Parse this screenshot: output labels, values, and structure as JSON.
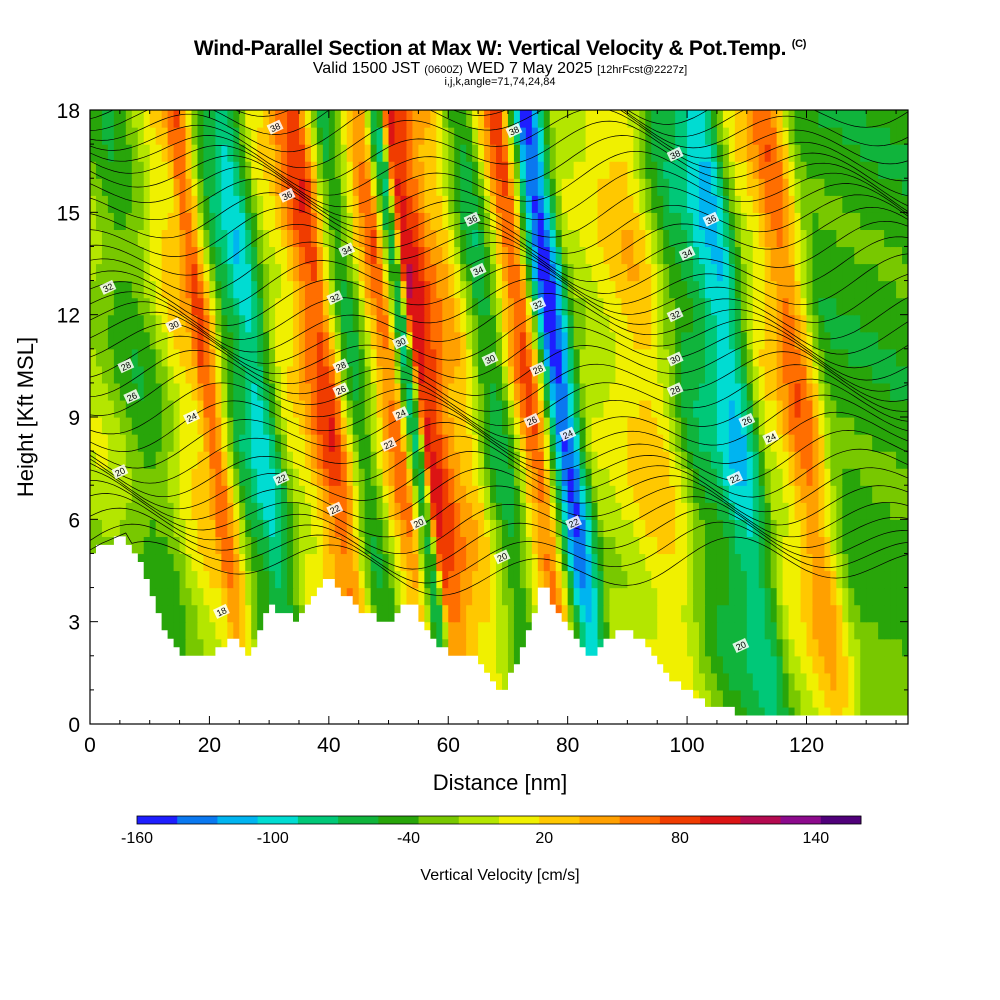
{
  "title": {
    "main": "Wind-Parallel Section at Max W: Vertical Velocity & Pot.Temp.",
    "unit_mark": "(C)",
    "valid_prefix": "Valid 1500 JST",
    "valid_utc": "(0600Z)",
    "valid_date": "WED 7 May 2025",
    "forecast": "[12hrFcst@2227z]",
    "indices": "i,j,k,angle=71,74,24,84"
  },
  "chart_data": {
    "type": "heatmap",
    "xlabel": "Distance [nm]",
    "ylabel": "Height [Kft MSL]",
    "xlim": [
      0,
      137
    ],
    "ylim": [
      0,
      18
    ],
    "x_ticks": [
      "0",
      "20",
      "40",
      "60",
      "80",
      "100",
      "120"
    ],
    "y_ticks": [
      "0",
      "3",
      "6",
      "9",
      "12",
      "15",
      "18"
    ],
    "grid": false,
    "colorbar": {
      "label": "Vertical Velocity [cm/s]",
      "tick_labels": [
        "-160",
        "-100",
        "-40",
        "20",
        "80",
        "140"
      ],
      "tick_values": [
        -160,
        -100,
        -40,
        20,
        80,
        140
      ],
      "min": -160,
      "max": 160,
      "step": 20,
      "colors": [
        "#1e1eff",
        "#0a78f0",
        "#00b4f0",
        "#00dcd2",
        "#00c878",
        "#10b43c",
        "#28a50a",
        "#78c800",
        "#b4e600",
        "#f0f000",
        "#ffc800",
        "#ffa000",
        "#ff6e00",
        "#f03c00",
        "#dc1414",
        "#b40a50",
        "#8c0a8c",
        "#50007a"
      ]
    },
    "vertical_velocity_bands": [
      {
        "x": 3,
        "w": 10
      },
      {
        "x": 11,
        "w": -30
      },
      {
        "x": 20,
        "w": 50
      },
      {
        "x": 22,
        "w": 100
      },
      {
        "x": 27,
        "w": -50
      },
      {
        "x": 30,
        "w": -90
      },
      {
        "x": 36,
        "w": 30
      },
      {
        "x": 42,
        "w": 110
      },
      {
        "x": 47,
        "w": -40
      },
      {
        "x": 53,
        "w": 90
      },
      {
        "x": 56,
        "w": -60
      },
      {
        "x": 58,
        "w": 130
      },
      {
        "x": 64,
        "w": 60
      },
      {
        "x": 70,
        "w": -50
      },
      {
        "x": 76,
        "w": 100
      },
      {
        "x": 81,
        "w": -150
      },
      {
        "x": 86,
        "w": 10
      },
      {
        "x": 96,
        "w": 50
      },
      {
        "x": 104,
        "w": -50
      },
      {
        "x": 110,
        "w": -100
      },
      {
        "x": 116,
        "w": 30
      },
      {
        "x": 121,
        "w": 90
      },
      {
        "x": 127,
        "w": -30
      }
    ],
    "terrain": [
      {
        "x": 0,
        "z": 5.0
      },
      {
        "x": 2,
        "z": 5.2
      },
      {
        "x": 6,
        "z": 5.5
      },
      {
        "x": 9,
        "z": 4.5
      },
      {
        "x": 12,
        "z": 3.0
      },
      {
        "x": 15,
        "z": 2.0
      },
      {
        "x": 20,
        "z": 2.0
      },
      {
        "x": 24,
        "z": 2.5
      },
      {
        "x": 27,
        "z": 2.0
      },
      {
        "x": 30,
        "z": 3.5
      },
      {
        "x": 35,
        "z": 3.0
      },
      {
        "x": 40,
        "z": 4.3
      },
      {
        "x": 45,
        "z": 3.4
      },
      {
        "x": 50,
        "z": 3.0
      },
      {
        "x": 54,
        "z": 3.6
      },
      {
        "x": 58,
        "z": 2.2
      },
      {
        "x": 64,
        "z": 2.0
      },
      {
        "x": 69,
        "z": 0.8
      },
      {
        "x": 73,
        "z": 2.5
      },
      {
        "x": 76,
        "z": 4.2
      },
      {
        "x": 79,
        "z": 3.0
      },
      {
        "x": 84,
        "z": 2.0
      },
      {
        "x": 88,
        "z": 2.7
      },
      {
        "x": 92,
        "z": 2.6
      },
      {
        "x": 96,
        "z": 1.5
      },
      {
        "x": 100,
        "z": 1.0
      },
      {
        "x": 104,
        "z": 0.5
      },
      {
        "x": 110,
        "z": 0.3
      },
      {
        "x": 137,
        "z": 0.3
      }
    ],
    "theta_contour_labels": [
      {
        "text": "38",
        "x": 31,
        "z": 17.5
      },
      {
        "text": "38",
        "x": 71,
        "z": 17.4
      },
      {
        "text": "38",
        "x": 98,
        "z": 16.7
      },
      {
        "text": "36",
        "x": 33,
        "z": 15.5
      },
      {
        "text": "36",
        "x": 64,
        "z": 14.8
      },
      {
        "text": "36",
        "x": 104,
        "z": 14.8
      },
      {
        "text": "34",
        "x": 43,
        "z": 13.9
      },
      {
        "text": "34",
        "x": 65,
        "z": 13.3
      },
      {
        "text": "34",
        "x": 100,
        "z": 13.8
      },
      {
        "text": "32",
        "x": 3,
        "z": 12.8
      },
      {
        "text": "32",
        "x": 41,
        "z": 12.5
      },
      {
        "text": "32",
        "x": 75,
        "z": 12.3
      },
      {
        "text": "32",
        "x": 98,
        "z": 12.0
      },
      {
        "text": "30",
        "x": 14,
        "z": 11.7
      },
      {
        "text": "30",
        "x": 52,
        "z": 11.2
      },
      {
        "text": "30",
        "x": 67,
        "z": 10.7
      },
      {
        "text": "30",
        "x": 98,
        "z": 10.7
      },
      {
        "text": "28",
        "x": 6,
        "z": 10.5
      },
      {
        "text": "28",
        "x": 42,
        "z": 10.5
      },
      {
        "text": "28",
        "x": 75,
        "z": 10.4
      },
      {
        "text": "28",
        "x": 98,
        "z": 9.8
      },
      {
        "text": "26",
        "x": 7,
        "z": 9.6
      },
      {
        "text": "26",
        "x": 42,
        "z": 9.8
      },
      {
        "text": "26",
        "x": 74,
        "z": 8.9
      },
      {
        "text": "26",
        "x": 110,
        "z": 8.9
      },
      {
        "text": "24",
        "x": 17,
        "z": 9.0
      },
      {
        "text": "24",
        "x": 52,
        "z": 9.1
      },
      {
        "text": "24",
        "x": 80,
        "z": 8.5
      },
      {
        "text": "24",
        "x": 114,
        "z": 8.4
      },
      {
        "text": "22",
        "x": 50,
        "z": 8.2
      },
      {
        "text": "22",
        "x": 32,
        "z": 7.2
      },
      {
        "text": "22",
        "x": 41,
        "z": 6.3
      },
      {
        "text": "22",
        "x": 81,
        "z": 5.9
      },
      {
        "text": "22",
        "x": 108,
        "z": 7.2
      },
      {
        "text": "20",
        "x": 5,
        "z": 7.4
      },
      {
        "text": "20",
        "x": 55,
        "z": 5.9
      },
      {
        "text": "20",
        "x": 69,
        "z": 4.9
      },
      {
        "text": "20",
        "x": 109,
        "z": 2.3
      },
      {
        "text": "18",
        "x": 22,
        "z": 3.3
      }
    ]
  }
}
